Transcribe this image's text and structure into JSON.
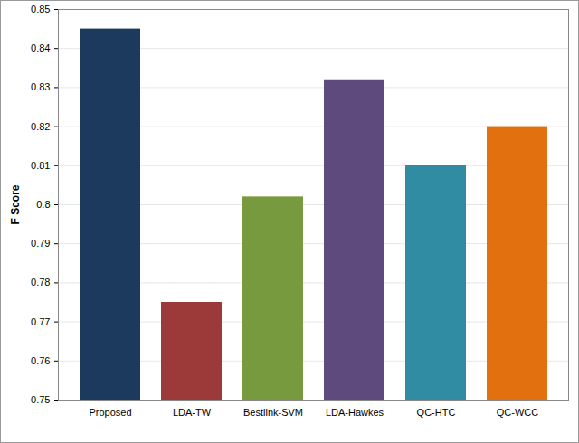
{
  "chart_data": {
    "type": "bar",
    "y_label": "F Score",
    "categories": [
      "Proposed",
      "LDA-TW",
      "Bestlink-SVM",
      "LDA-Hawkes",
      "QC-HTC",
      "QC-WCC"
    ],
    "values": [
      0.845,
      0.775,
      0.802,
      0.832,
      0.81,
      0.82
    ],
    "colors": [
      "#1b3a5e",
      "#9b3a38",
      "#789a3e",
      "#5e4a7c",
      "#2f8ca3",
      "#e2700f"
    ],
    "ylim": [
      0.75,
      0.85
    ],
    "yticks": [
      0.75,
      0.76,
      0.77,
      0.78,
      0.79,
      0.8,
      0.81,
      0.82,
      0.83,
      0.84,
      0.85
    ],
    "grid": true
  }
}
